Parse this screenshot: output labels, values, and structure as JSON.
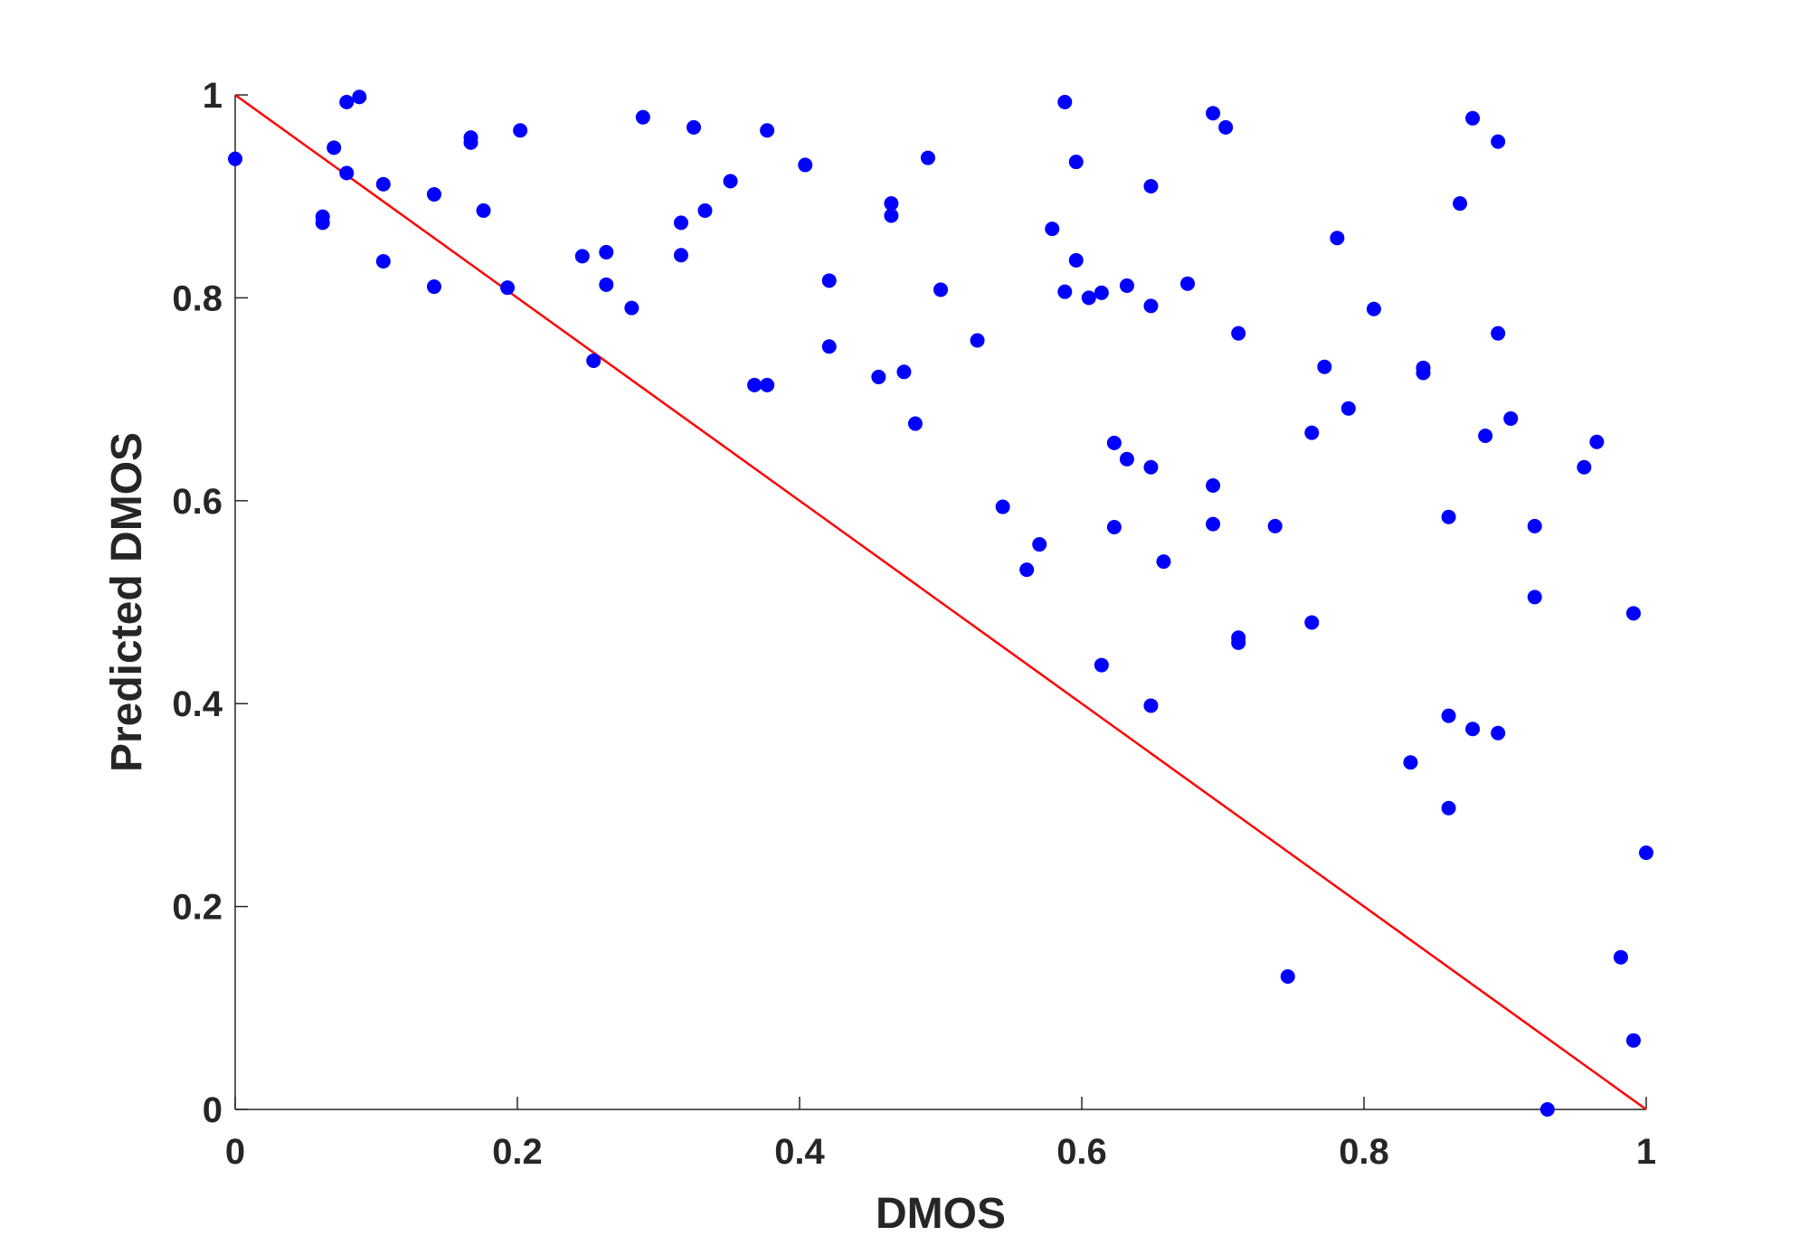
{
  "chart_data": {
    "type": "scatter",
    "title": "",
    "xlabel": "DMOS",
    "ylabel": "Predicted DMOS",
    "xlim": [
      0,
      1
    ],
    "ylim": [
      0,
      1
    ],
    "xticks": [
      "0",
      "0.2",
      "0.4",
      "0.6",
      "0.8",
      "1"
    ],
    "yticks": [
      "0",
      "0.2",
      "0.4",
      "0.6",
      "0.8",
      "1"
    ],
    "grid": false,
    "marker_color": "#0000ff",
    "reference_line": {
      "x": [
        0,
        1
      ],
      "y": [
        1,
        0
      ],
      "color": "#ff0000"
    },
    "series": [
      {
        "points": [
          [
            0.0,
            0.937
          ],
          [
            0.062,
            0.88
          ],
          [
            0.062,
            0.874
          ],
          [
            0.07,
            0.948
          ],
          [
            0.079,
            0.993
          ],
          [
            0.079,
            0.923
          ],
          [
            0.088,
            0.998
          ],
          [
            0.105,
            0.912
          ],
          [
            0.105,
            0.836
          ],
          [
            0.141,
            0.902
          ],
          [
            0.141,
            0.811
          ],
          [
            0.167,
            0.958
          ],
          [
            0.167,
            0.953
          ],
          [
            0.176,
            0.886
          ],
          [
            0.193,
            0.81
          ],
          [
            0.202,
            0.965
          ],
          [
            0.246,
            0.841
          ],
          [
            0.254,
            0.738
          ],
          [
            0.263,
            0.845
          ],
          [
            0.263,
            0.813
          ],
          [
            0.281,
            0.79
          ],
          [
            0.289,
            0.978
          ],
          [
            0.316,
            0.874
          ],
          [
            0.316,
            0.842
          ],
          [
            0.325,
            0.968
          ],
          [
            0.333,
            0.886
          ],
          [
            0.351,
            0.915
          ],
          [
            0.368,
            0.714
          ],
          [
            0.377,
            0.714
          ],
          [
            0.377,
            0.965
          ],
          [
            0.404,
            0.931
          ],
          [
            0.421,
            0.817
          ],
          [
            0.421,
            0.752
          ],
          [
            0.456,
            0.722
          ],
          [
            0.465,
            0.893
          ],
          [
            0.465,
            0.881
          ],
          [
            0.474,
            0.727
          ],
          [
            0.482,
            0.676
          ],
          [
            0.491,
            0.938
          ],
          [
            0.5,
            0.808
          ],
          [
            0.526,
            0.758
          ],
          [
            0.544,
            0.594
          ],
          [
            0.561,
            0.532
          ],
          [
            0.57,
            0.557
          ],
          [
            0.579,
            0.868
          ],
          [
            0.588,
            0.993
          ],
          [
            0.588,
            0.806
          ],
          [
            0.596,
            0.934
          ],
          [
            0.596,
            0.837
          ],
          [
            0.605,
            0.8
          ],
          [
            0.614,
            0.805
          ],
          [
            0.614,
            0.438
          ],
          [
            0.623,
            0.657
          ],
          [
            0.623,
            0.574
          ],
          [
            0.632,
            0.812
          ],
          [
            0.632,
            0.641
          ],
          [
            0.649,
            0.91
          ],
          [
            0.649,
            0.792
          ],
          [
            0.649,
            0.633
          ],
          [
            0.649,
            0.398
          ],
          [
            0.658,
            0.54
          ],
          [
            0.675,
            0.814
          ],
          [
            0.693,
            0.982
          ],
          [
            0.693,
            0.615
          ],
          [
            0.693,
            0.577
          ],
          [
            0.702,
            0.968
          ],
          [
            0.711,
            0.765
          ],
          [
            0.711,
            0.465
          ],
          [
            0.711,
            0.46
          ],
          [
            0.737,
            0.575
          ],
          [
            0.746,
            0.131
          ],
          [
            0.763,
            0.667
          ],
          [
            0.763,
            0.48
          ],
          [
            0.772,
            0.732
          ],
          [
            0.781,
            0.859
          ],
          [
            0.789,
            0.691
          ],
          [
            0.807,
            0.789
          ],
          [
            0.833,
            0.342
          ],
          [
            0.842,
            0.731
          ],
          [
            0.842,
            0.726
          ],
          [
            0.86,
            0.584
          ],
          [
            0.86,
            0.388
          ],
          [
            0.86,
            0.297
          ],
          [
            0.868,
            0.893
          ],
          [
            0.877,
            0.977
          ],
          [
            0.877,
            0.375
          ],
          [
            0.886,
            0.664
          ],
          [
            0.895,
            0.954
          ],
          [
            0.895,
            0.765
          ],
          [
            0.895,
            0.371
          ],
          [
            0.904,
            0.681
          ],
          [
            0.921,
            0.575
          ],
          [
            0.921,
            0.505
          ],
          [
            0.93,
            0.0
          ],
          [
            0.956,
            0.633
          ],
          [
            0.965,
            0.658
          ],
          [
            0.982,
            0.15
          ],
          [
            0.991,
            0.489
          ],
          [
            0.991,
            0.068
          ],
          [
            1.0,
            0.253
          ]
        ]
      }
    ]
  }
}
